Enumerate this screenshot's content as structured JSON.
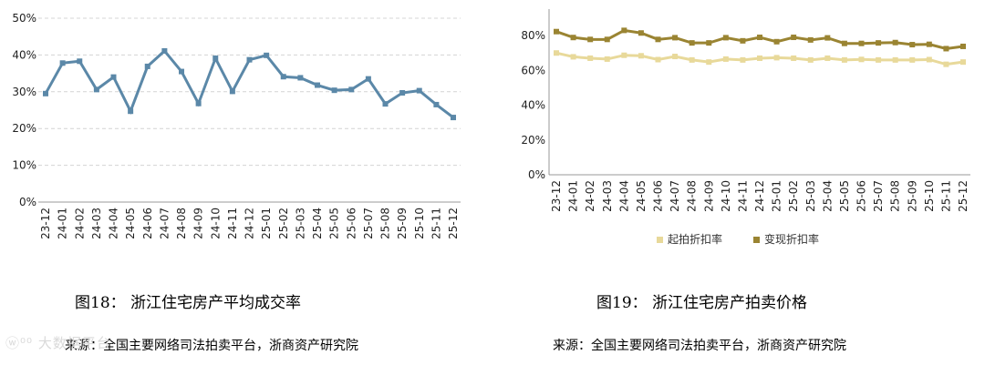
{
  "figures": [
    {
      "caption": "图18：  浙江住宅房产平均成交率",
      "source": "来源：全国主要网络司法拍卖平台，浙商资产研究院"
    },
    {
      "caption": "图19：  浙江住宅房产拍卖价格",
      "source": "来源：全国主要网络司法拍卖平台，浙商资产研究院"
    }
  ],
  "watermark": "大数据平台",
  "chart_data": [
    {
      "type": "line",
      "categories": [
        "23-12",
        "24-01",
        "24-02",
        "24-03",
        "24-04",
        "24-05",
        "24-06",
        "24-07",
        "24-08",
        "24-09",
        "24-10",
        "24-11",
        "24-12",
        "25-01",
        "25-02",
        "25-03",
        "25-04",
        "25-05",
        "25-06",
        "25-07",
        "25-08",
        "25-09",
        "25-10",
        "25-11",
        "25-12"
      ],
      "series": [
        {
          "values": [
            29.5,
            37.8,
            38.3,
            30.6,
            34.0,
            24.7,
            36.9,
            41.1,
            35.5,
            26.8,
            39.1,
            30.1,
            38.7,
            39.9,
            34.1,
            33.8,
            31.8,
            30.4,
            30.6,
            33.5,
            26.7,
            29.7,
            30.3,
            26.5,
            23.0
          ],
          "color": "#5b88a8"
        }
      ],
      "yticks": [
        "0%",
        "10%",
        "20%",
        "30%",
        "40%",
        "50%"
      ],
      "ylim": [
        0,
        50
      ],
      "grid": true
    },
    {
      "type": "line",
      "categories": [
        "23-12",
        "24-01",
        "24-02",
        "24-03",
        "24-04",
        "24-05",
        "24-06",
        "24-07",
        "24-08",
        "24-09",
        "24-10",
        "24-11",
        "24-12",
        "25-01",
        "25-02",
        "25-03",
        "25-04",
        "25-05",
        "25-06",
        "25-07",
        "25-08",
        "25-09",
        "25-10",
        "25-11",
        "25-12"
      ],
      "series": [
        {
          "name": "起拍折扣率",
          "values": [
            70.0,
            67.8,
            67.0,
            66.5,
            68.7,
            68.4,
            66.2,
            68.0,
            66.0,
            64.8,
            66.5,
            66.0,
            67.0,
            67.3,
            67.0,
            66.0,
            67.0,
            66.0,
            66.3,
            66.0,
            66.0,
            66.0,
            66.2,
            63.5,
            64.8
          ],
          "color": "#e8d99a"
        },
        {
          "name": "变现折扣率",
          "values": [
            82.3,
            78.9,
            77.8,
            77.8,
            83.0,
            81.5,
            77.8,
            78.8,
            75.8,
            75.8,
            78.8,
            77.0,
            79.0,
            76.5,
            79.0,
            77.5,
            78.7,
            75.5,
            75.5,
            75.8,
            76.0,
            74.8,
            75.0,
            72.5,
            73.8
          ],
          "color": "#9a8432"
        }
      ],
      "yticks": [
        "0%",
        "20%",
        "40%",
        "60%",
        "80%"
      ],
      "ylim": [
        0,
        90
      ],
      "grid": false,
      "legend": "bottom"
    }
  ]
}
